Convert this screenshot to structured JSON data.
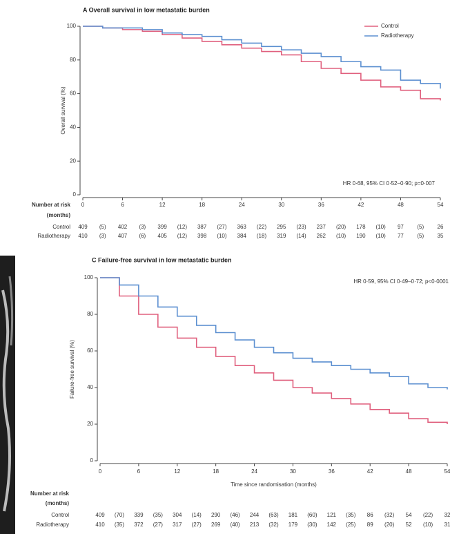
{
  "chart_data": [
    {
      "type": "line",
      "title": "A  Overall survival in low metastatic burden",
      "ylabel": "Overall survival (%)",
      "annotation": "HR 0·68, 95% CI 0·52–0·90; p=0·007",
      "x": [
        0,
        3,
        6,
        9,
        12,
        15,
        18,
        21,
        24,
        27,
        30,
        33,
        36,
        39,
        42,
        45,
        48,
        51,
        54
      ],
      "series": [
        {
          "name": "Control",
          "color": "#e0607e",
          "values": [
            100,
            99,
            98,
            97,
            95,
            93,
            91,
            89,
            87,
            85,
            83,
            79,
            75,
            72,
            68,
            64,
            62,
            57,
            56
          ]
        },
        {
          "name": "Radiotherapy",
          "color": "#5b8fd0",
          "values": [
            100,
            99,
            99,
            98,
            96,
            95,
            94,
            92,
            90,
            88,
            86,
            84,
            82,
            79,
            76,
            74,
            68,
            66,
            63
          ]
        }
      ],
      "xlim": [
        0,
        54
      ],
      "xticks": [
        0,
        6,
        12,
        18,
        24,
        30,
        36,
        42,
        48,
        54
      ],
      "ylim": [
        0,
        100
      ],
      "yticks": [
        0,
        20,
        40,
        60,
        80,
        100
      ],
      "legend": "top-right",
      "risk_table": {
        "title": "Number at risk",
        "subtitle": "(months)",
        "rows": [
          {
            "name": "Control",
            "counts": [
              409,
              402,
              399,
              387,
              363,
              295,
              237,
              178,
              97,
              26
            ],
            "events": [
              "(5)",
              "(3)",
              "(12)",
              "(27)",
              "(22)",
              "(23)",
              "(20)",
              "(10)",
              "(5)"
            ]
          },
          {
            "name": "Radiotherapy",
            "counts": [
              410,
              407,
              405,
              398,
              384,
              319,
              262,
              190,
              77,
              35
            ],
            "events": [
              "(3)",
              "(6)",
              "(12)",
              "(10)",
              "(18)",
              "(14)",
              "(10)",
              "(10)",
              "(5)"
            ]
          }
        ]
      }
    },
    {
      "type": "line",
      "title": "C  Failure-free survival in low metastatic burden",
      "ylabel": "Failure-free survival (%)",
      "xlabel": "Time since randomisation (months)",
      "annotation": "HR 0·59, 95% CI 0·49–0·72; p<0·0001",
      "x": [
        0,
        3,
        6,
        9,
        12,
        15,
        18,
        21,
        24,
        27,
        30,
        33,
        36,
        39,
        42,
        45,
        48,
        51,
        54
      ],
      "series": [
        {
          "color": "#e0607e",
          "values": [
            100,
            90,
            80,
            73,
            67,
            62,
            57,
            52,
            48,
            44,
            40,
            37,
            34,
            31,
            28,
            26,
            23,
            21,
            20
          ]
        },
        {
          "color": "#5b8fd0",
          "values": [
            100,
            96,
            90,
            84,
            79,
            74,
            70,
            66,
            62,
            59,
            56,
            54,
            52,
            50,
            48,
            46,
            42,
            40,
            39
          ]
        }
      ],
      "xlim": [
        0,
        54
      ],
      "xticks": [
        0,
        6,
        12,
        18,
        24,
        30,
        36,
        42,
        48,
        54
      ],
      "ylim": [
        0,
        100
      ],
      "yticks": [
        0,
        20,
        40,
        60,
        80,
        100
      ],
      "risk_table": {
        "title": "Number at risk",
        "subtitle": "(months)",
        "rows": [
          {
            "name": "Control",
            "counts": [
              409,
              339,
              304,
              290,
              244,
              181,
              121,
              86,
              54,
              32
            ],
            "events": [
              "(70)",
              "(35)",
              "(14)",
              "(46)",
              "(63)",
              "(60)",
              "(35)",
              "(32)",
              "(22)"
            ]
          },
          {
            "name": "Radiotherapy",
            "counts": [
              410,
              372,
              317,
              269,
              213,
              179,
              142,
              89,
              52,
              31
            ],
            "events": [
              "(35)",
              "(27)",
              "(27)",
              "(40)",
              "(32)",
              "(30)",
              "(25)",
              "(20)",
              "(10)"
            ]
          }
        ]
      }
    }
  ]
}
